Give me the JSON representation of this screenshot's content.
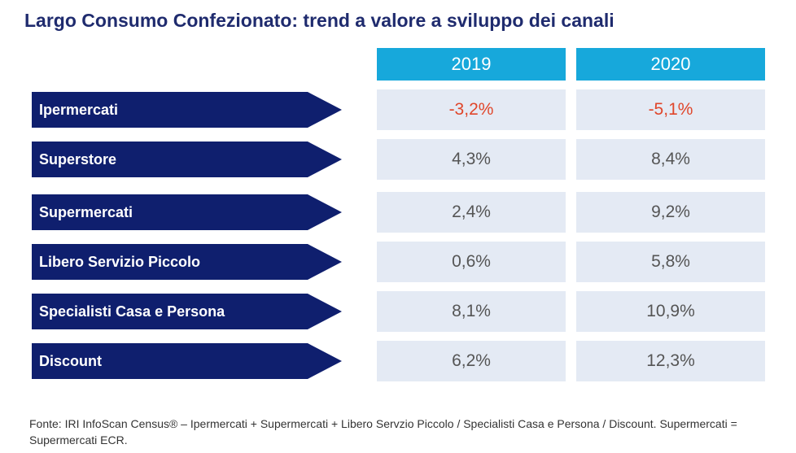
{
  "title": "Largo Consumo Confezionato: trend a valore a sviluppo dei canali",
  "colors": {
    "title": "#1f2b6e",
    "header_bg": "#17a8db",
    "arrow_bg": "#0f1f6e",
    "cell_bg": "#e4eaf4",
    "negative": "#e0462a",
    "value": "#555555"
  },
  "chart_data": {
    "type": "table",
    "columns": [
      "2019",
      "2020"
    ],
    "rows": [
      {
        "channel": "Ipermercati",
        "values": [
          -3.2,
          -5.1
        ],
        "labels": [
          "-3,2%",
          "-5,1%"
        ]
      },
      {
        "channel": "Superstore",
        "values": [
          4.3,
          8.4
        ],
        "labels": [
          "4,3%",
          "8,4%"
        ]
      },
      {
        "channel": "Supermercati",
        "values": [
          2.4,
          9.2
        ],
        "labels": [
          "2,4%",
          "9,2%"
        ]
      },
      {
        "channel": "Libero Servizio Piccolo",
        "values": [
          0.6,
          5.8
        ],
        "labels": [
          "0,6%",
          "5,8%"
        ]
      },
      {
        "channel": "Specialisti Casa e Persona",
        "values": [
          8.1,
          10.9
        ],
        "labels": [
          "8,1%",
          "10,9%"
        ]
      },
      {
        "channel": "Discount",
        "values": [
          6.2,
          12.3
        ],
        "labels": [
          "6,2%",
          "12,3%"
        ]
      }
    ]
  },
  "source_note": "Fonte: IRI InfoScan Census® – Ipermercati + Supermercati + Libero Servzio Piccolo / Specialisti Casa e Persona / Discount. Supermercati = Supermercati ECR."
}
